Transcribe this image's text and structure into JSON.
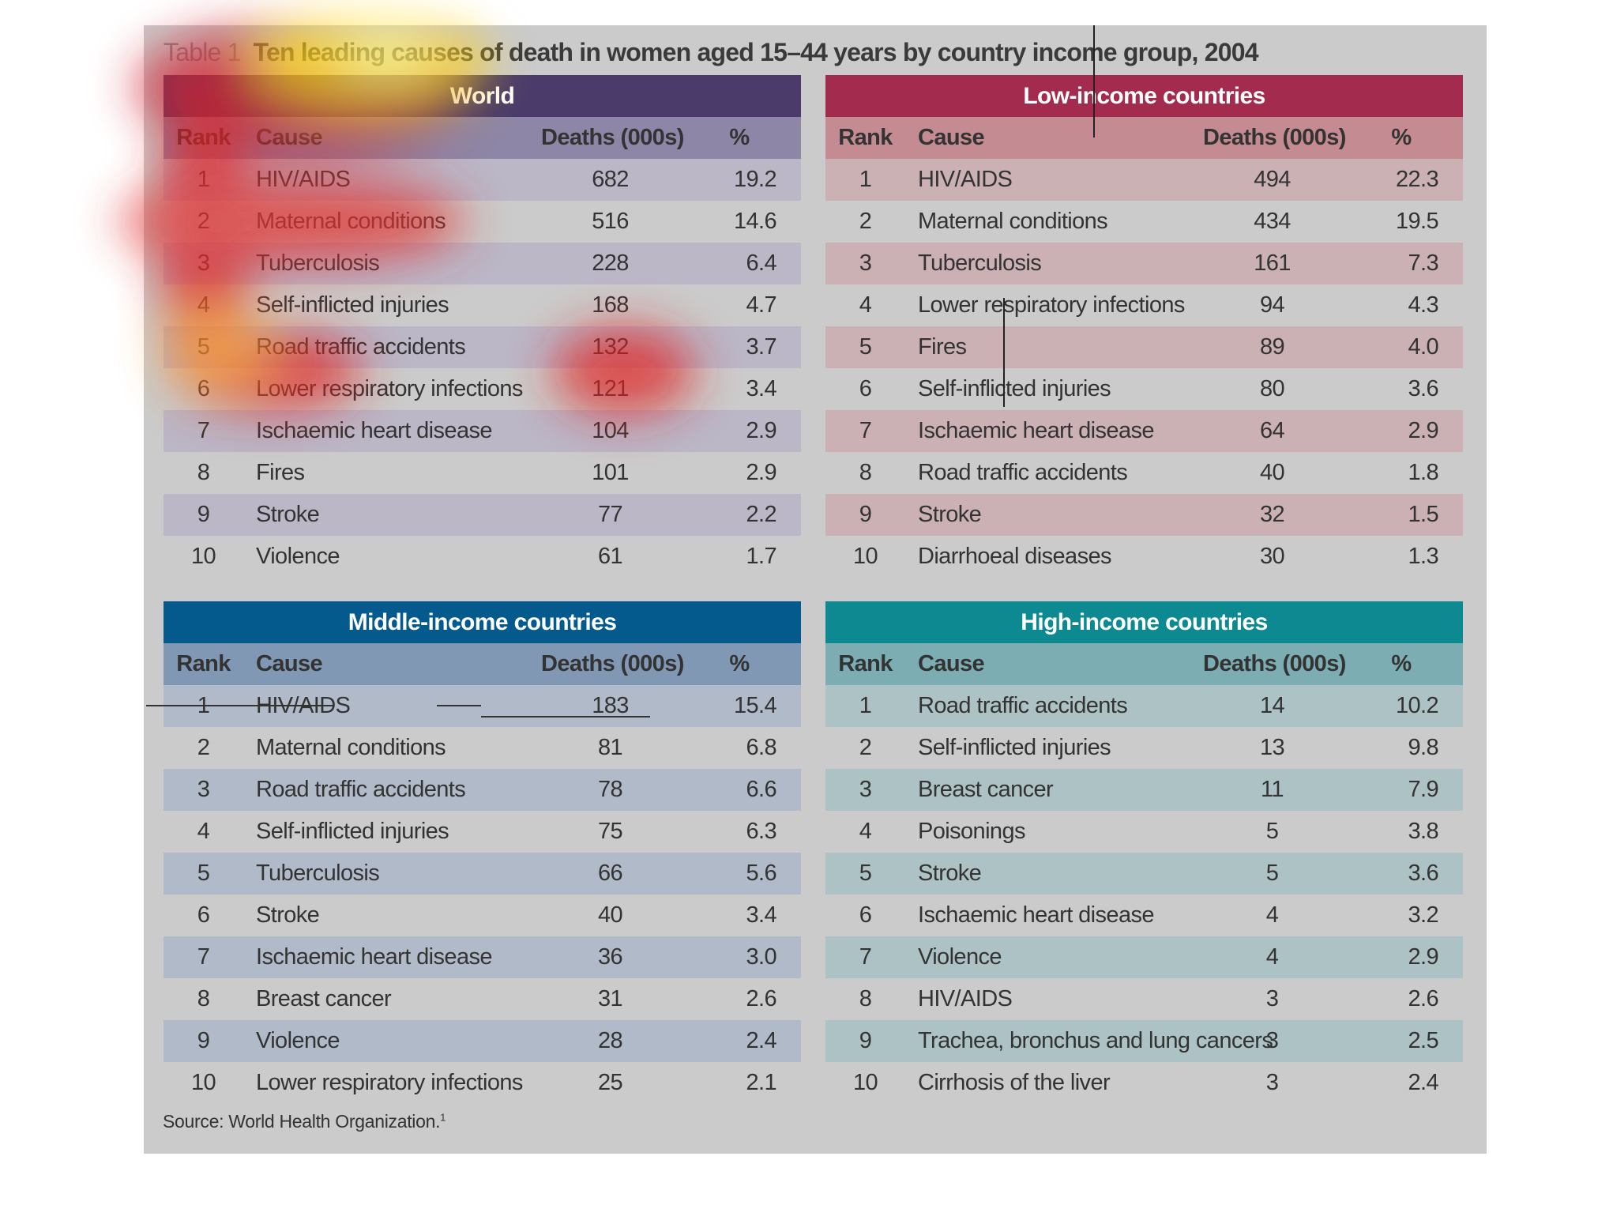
{
  "title": {
    "label": "Table 1",
    "text": "Ten leading causes of death in women aged 15–44 years by country income group, 2004"
  },
  "columns": {
    "rank": "Rank",
    "cause": "Cause",
    "deaths": "Deaths (000s)",
    "pct": "%"
  },
  "tables": {
    "world": {
      "heading": "World",
      "rows": [
        {
          "rank": "1",
          "cause": "HIV/AIDS",
          "deaths": "682",
          "pct": "19.2"
        },
        {
          "rank": "2",
          "cause": "Maternal conditions",
          "deaths": "516",
          "pct": "14.6"
        },
        {
          "rank": "3",
          "cause": "Tuberculosis",
          "deaths": "228",
          "pct": "6.4"
        },
        {
          "rank": "4",
          "cause": "Self-inflicted injuries",
          "deaths": "168",
          "pct": "4.7"
        },
        {
          "rank": "5",
          "cause": "Road traffic accidents",
          "deaths": "132",
          "pct": "3.7"
        },
        {
          "rank": "6",
          "cause": "Lower respiratory infections",
          "deaths": "121",
          "pct": "3.4"
        },
        {
          "rank": "7",
          "cause": "Ischaemic heart disease",
          "deaths": "104",
          "pct": "2.9"
        },
        {
          "rank": "8",
          "cause": "Fires",
          "deaths": "101",
          "pct": "2.9"
        },
        {
          "rank": "9",
          "cause": "Stroke",
          "deaths": "77",
          "pct": "2.2"
        },
        {
          "rank": "10",
          "cause": "Violence",
          "deaths": "61",
          "pct": "1.7"
        }
      ]
    },
    "low": {
      "heading": "Low-income countries",
      "rows": [
        {
          "rank": "1",
          "cause": "HIV/AIDS",
          "deaths": "494",
          "pct": "22.3"
        },
        {
          "rank": "2",
          "cause": "Maternal conditions",
          "deaths": "434",
          "pct": "19.5"
        },
        {
          "rank": "3",
          "cause": "Tuberculosis",
          "deaths": "161",
          "pct": "7.3"
        },
        {
          "rank": "4",
          "cause": "Lower respiratory infections",
          "deaths": "94",
          "pct": "4.3"
        },
        {
          "rank": "5",
          "cause": "Fires",
          "deaths": "89",
          "pct": "4.0"
        },
        {
          "rank": "6",
          "cause": "Self-inflicted injuries",
          "deaths": "80",
          "pct": "3.6"
        },
        {
          "rank": "7",
          "cause": "Ischaemic heart disease",
          "deaths": "64",
          "pct": "2.9"
        },
        {
          "rank": "8",
          "cause": "Road traffic accidents",
          "deaths": "40",
          "pct": "1.8"
        },
        {
          "rank": "9",
          "cause": "Stroke",
          "deaths": "32",
          "pct": "1.5"
        },
        {
          "rank": "10",
          "cause": "Diarrhoeal diseases",
          "deaths": "30",
          "pct": "1.3"
        }
      ]
    },
    "middle": {
      "heading": "Middle-income countries",
      "rows": [
        {
          "rank": "1",
          "cause": "HIV/AIDS",
          "deaths": "183",
          "pct": "15.4"
        },
        {
          "rank": "2",
          "cause": "Maternal conditions",
          "deaths": "81",
          "pct": "6.8"
        },
        {
          "rank": "3",
          "cause": "Road traffic accidents",
          "deaths": "78",
          "pct": "6.6"
        },
        {
          "rank": "4",
          "cause": "Self-inflicted injuries",
          "deaths": "75",
          "pct": "6.3"
        },
        {
          "rank": "5",
          "cause": "Tuberculosis",
          "deaths": "66",
          "pct": "5.6"
        },
        {
          "rank": "6",
          "cause": "Stroke",
          "deaths": "40",
          "pct": "3.4"
        },
        {
          "rank": "7",
          "cause": "Ischaemic heart disease",
          "deaths": "36",
          "pct": "3.0"
        },
        {
          "rank": "8",
          "cause": "Breast cancer",
          "deaths": "31",
          "pct": "2.6"
        },
        {
          "rank": "9",
          "cause": "Violence",
          "deaths": "28",
          "pct": "2.4"
        },
        {
          "rank": "10",
          "cause": "Lower respiratory infections",
          "deaths": "25",
          "pct": "2.1"
        }
      ]
    },
    "high": {
      "heading": "High-income countries",
      "rows": [
        {
          "rank": "1",
          "cause": "Road traffic accidents",
          "deaths": "14",
          "pct": "10.2"
        },
        {
          "rank": "2",
          "cause": "Self-inflicted injuries",
          "deaths": "13",
          "pct": "9.8"
        },
        {
          "rank": "3",
          "cause": "Breast cancer",
          "deaths": "11",
          "pct": "7.9"
        },
        {
          "rank": "4",
          "cause": "Poisonings",
          "deaths": "5",
          "pct": "3.8"
        },
        {
          "rank": "5",
          "cause": "Stroke",
          "deaths": "5",
          "pct": "3.6"
        },
        {
          "rank": "6",
          "cause": "Ischaemic heart disease",
          "deaths": "4",
          "pct": "3.2"
        },
        {
          "rank": "7",
          "cause": "Violence",
          "deaths": "4",
          "pct": "2.9"
        },
        {
          "rank": "8",
          "cause": "HIV/AIDS",
          "deaths": "3",
          "pct": "2.6"
        },
        {
          "rank": "9",
          "cause": "Trachea, bronchus and lung cancers",
          "deaths": "3",
          "pct": "2.5"
        },
        {
          "rank": "10",
          "cause": "Cirrhosis of the liver",
          "deaths": "3",
          "pct": "2.4"
        }
      ]
    }
  },
  "source": {
    "text": "Source: World Health Organization.",
    "note": "1"
  },
  "colors": {
    "world_header": "#4a3b6b",
    "low_header": "#a32b4e",
    "middle_header": "#045a8d",
    "high_header": "#0d8a91",
    "panel_background": "#cbcbcb"
  }
}
